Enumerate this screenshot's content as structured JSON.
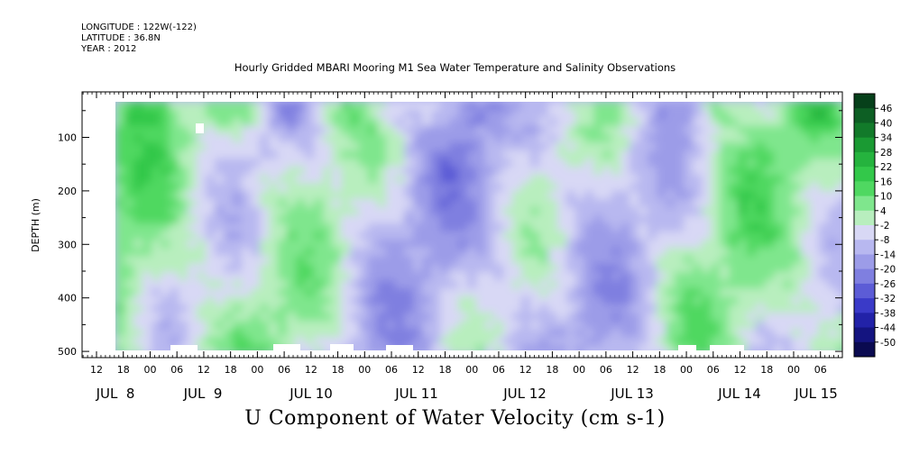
{
  "header": {
    "longitude": "LONGITUDE : 122W(-122)",
    "latitude": "LATITUDE : 36.8N",
    "year": "YEAR : 2012"
  },
  "title": "Hourly Gridded MBARI Mooring M1 Sea Water Temperature and Salinity Observations",
  "variable_title": "U Component of Water Velocity (cm s-1)",
  "chart_data": {
    "type": "heatmap",
    "title": "Hourly Gridded MBARI Mooring M1 Sea Water Temperature and Salinity Observations",
    "xlabel": "",
    "ylabel": "DEPTH (m)",
    "y_ticks": [
      100,
      200,
      300,
      400,
      500
    ],
    "ylim": [
      0,
      500
    ],
    "y_direction": "downward",
    "x_hour_ticks": [
      "12",
      "18",
      "00",
      "06",
      "12",
      "18",
      "00",
      "06",
      "12",
      "18",
      "00",
      "06",
      "12",
      "18",
      "00",
      "06",
      "12",
      "18",
      "00",
      "06",
      "12",
      "18",
      "00",
      "06",
      "12",
      "18",
      "00",
      "06",
      "12",
      "18",
      "00",
      "06"
    ],
    "x_day_labels": [
      "JUL  8",
      "JUL  9",
      "JUL 10",
      "JUL 11",
      "JUL 12",
      "JUL 13",
      "JUL 14",
      "JUL 15"
    ],
    "colorbar": {
      "labels": [
        "46",
        "40",
        "34",
        "28",
        "22",
        "16",
        "10",
        "4",
        "-2",
        "-8",
        "-14",
        "-20",
        "-26",
        "-32",
        "-38",
        "-44",
        "-50"
      ],
      "colors": [
        "#06401a",
        "#0d5f24",
        "#127a2a",
        "#1a9a33",
        "#25b33e",
        "#33c84a",
        "#4fd861",
        "#7fe68d",
        "#b8eebe",
        "#d8d8f5",
        "#b8b8f0",
        "#9c9ce8",
        "#7f7fe0",
        "#5c5cd6",
        "#3a3ac8",
        "#2222a8",
        "#141480",
        "#0a0a50"
      ]
    },
    "grid": false,
    "legend": "right colorbar"
  }
}
